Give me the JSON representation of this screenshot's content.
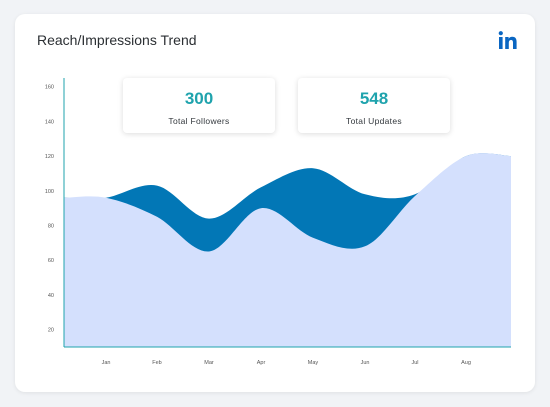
{
  "widget": {
    "title": "Reach/Impressions Trend",
    "brand_icon": "linkedin-icon",
    "brand_color": "#0a66c2"
  },
  "stats": [
    {
      "value": "300",
      "label": "Total Followers"
    },
    {
      "value": "548",
      "label": "Total Updates"
    }
  ],
  "colors": {
    "upper_area": "#0277b6",
    "lower_area": "#d4e0fd",
    "stat_value": "#1fa3ad",
    "axis": "#1fa3ad"
  },
  "chart_data": {
    "type": "area",
    "categories": [
      "Jan",
      "Feb",
      "Mar",
      "Apr",
      "May",
      "Jun",
      "Jul",
      "Aug"
    ],
    "y_ticks": [
      "160",
      "140",
      "120",
      "100",
      "80",
      "60",
      "40",
      "20"
    ],
    "ylim": [
      10,
      165
    ],
    "series": [
      {
        "values": [
          96,
          103,
          84,
          102,
          113,
          98,
          98,
          120
        ]
      },
      {
        "values": [
          96,
          85,
          65,
          90,
          73,
          68,
          97,
          120
        ]
      }
    ],
    "grid": false
  }
}
